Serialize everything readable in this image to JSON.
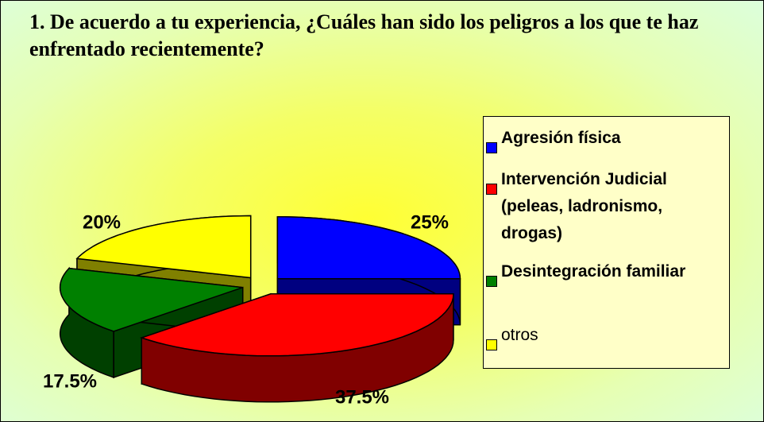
{
  "chart_data": {
    "type": "pie",
    "title": "1.   De acuerdo a tu experiencia, ¿Cuáles han sido los peligros a los que te haz enfrentado recientemente?",
    "categories": [
      "Agresión física",
      "Intervención Judicial (peleas, ladronismo, drogas)",
      "Desintegración familiar",
      "otros"
    ],
    "values": [
      25,
      37.5,
      17.5,
      20
    ],
    "value_labels": [
      "25%",
      "37.5%",
      "17.5%",
      "20%"
    ],
    "colors": [
      "#0000ff",
      "#ff0000",
      "#008000",
      "#ffff00"
    ],
    "legend": "right"
  }
}
